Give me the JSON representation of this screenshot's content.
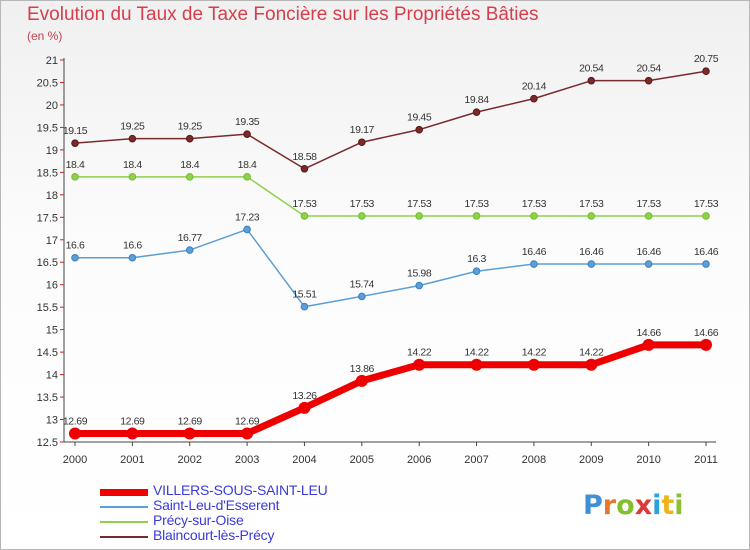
{
  "title": "Evolution du Taux de Taxe Foncière sur les Propriétés Bâties",
  "unit_label": "(en %)",
  "brand": {
    "letters": [
      "P",
      "r",
      "o",
      "x",
      "i",
      "t",
      "i"
    ],
    "colors": [
      "#3d8fd6",
      "#e8772c",
      "#84bf2e",
      "#d93a3a",
      "#2aa3d8",
      "#f1b21c",
      "#8cbf32"
    ]
  },
  "chart_data": {
    "type": "line",
    "title": "Evolution du Taux de Taxe Foncière sur les Propriétés Bâties",
    "ylabel": "(en %)",
    "xlabel": "",
    "ylim": [
      12.5,
      21
    ],
    "x": [
      "2000",
      "2001",
      "2002",
      "2003",
      "2004",
      "2005",
      "2006",
      "2007",
      "2008",
      "2009",
      "2010",
      "2011"
    ],
    "yticks": [
      "12.5",
      "13",
      "13.5",
      "14",
      "14.5",
      "15",
      "15.5",
      "16",
      "16.5",
      "17",
      "17.5",
      "18",
      "18.5",
      "19",
      "19.5",
      "20",
      "20.5",
      "21"
    ],
    "grid": false,
    "legend_position": "bottom-left",
    "series": [
      {
        "name": "VILLERS-SOUS-SAINT-LEU",
        "color": "#ee0000",
        "emphasis": true,
        "values": [
          12.69,
          12.69,
          12.69,
          12.69,
          13.26,
          13.86,
          14.22,
          14.22,
          14.22,
          14.22,
          14.66,
          14.66
        ],
        "labels": [
          "12.69",
          "12.69",
          "12.69",
          "12.69",
          "13.26",
          "13.86",
          "14.22",
          "14.22",
          "14.22",
          "14.22",
          "14.66",
          "14.66"
        ]
      },
      {
        "name": "Saint-Leu-d'Esserent",
        "color": "#5b9fd6",
        "point_color": "#3c7fc0",
        "emphasis": false,
        "values": [
          16.6,
          16.6,
          16.77,
          17.23,
          15.51,
          15.74,
          15.98,
          16.3,
          16.46,
          16.46,
          16.46,
          16.46
        ],
        "labels": [
          "16.6",
          "16.6",
          "16.77",
          "17.23",
          "15.51",
          "15.74",
          "15.98",
          "16.3",
          "16.46",
          "16.46",
          "16.46",
          "16.46"
        ]
      },
      {
        "name": "Précy-sur-Oise",
        "color": "#8fd14a",
        "point_color": "#72c02c",
        "emphasis": false,
        "values": [
          18.4,
          18.4,
          18.4,
          18.4,
          17.53,
          17.53,
          17.53,
          17.53,
          17.53,
          17.53,
          17.53,
          17.53
        ],
        "labels": [
          "18.4",
          "18.4",
          "18.4",
          "18.4",
          "17.53",
          "17.53",
          "17.53",
          "17.53",
          "17.53",
          "17.53",
          "17.53",
          "17.53"
        ]
      },
      {
        "name": "Blaincourt-lès-Précy",
        "color": "#7a2a2a",
        "point_color": "#5a1818",
        "emphasis": false,
        "values": [
          19.15,
          19.25,
          19.25,
          19.35,
          18.58,
          19.17,
          19.45,
          19.84,
          20.14,
          20.54,
          20.54,
          20.75
        ],
        "labels": [
          "19.15",
          "19.25",
          "19.25",
          "19.35",
          "18.58",
          "19.17",
          "19.45",
          "19.84",
          "20.14",
          "20.54",
          "20.54",
          "20.75"
        ]
      }
    ]
  }
}
